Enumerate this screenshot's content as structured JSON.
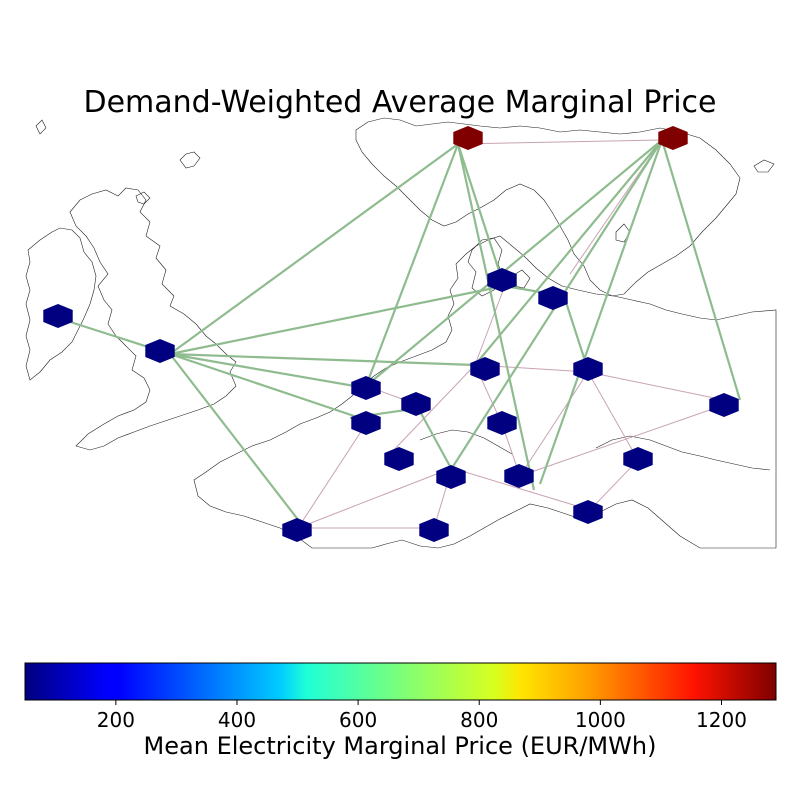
{
  "title": "Demand-Weighted Average Marginal Price",
  "colorbar": {
    "label": "Mean Electricity Marginal Price (EUR/MWh)",
    "min": 50,
    "max": 1290,
    "ticks": [
      200,
      400,
      600,
      800,
      1000,
      1200
    ],
    "tick_labels": [
      "200",
      "400",
      "600",
      "800",
      "1000",
      "1200"
    ],
    "colormap": "jet"
  },
  "colors": {
    "low_price_node": "#00008b",
    "high_price_node": "#800000",
    "dc_link": "#8fbc8f",
    "ac_line": "#c8a2b4",
    "coastline": "#222222"
  },
  "nodes": [
    {
      "id": "NO-S",
      "price": 1290
    },
    {
      "id": "SE-N",
      "price": 1290
    },
    {
      "id": "IE",
      "price": 50
    },
    {
      "id": "GB",
      "price": 50
    },
    {
      "id": "DK",
      "price": 50
    },
    {
      "id": "SE-S",
      "price": 50
    },
    {
      "id": "NL",
      "price": 50
    },
    {
      "id": "DE-N",
      "price": 50
    },
    {
      "id": "PL",
      "price": 50
    },
    {
      "id": "BE",
      "price": 50
    },
    {
      "id": "LU",
      "price": 50
    },
    {
      "id": "DE-C",
      "price": 50
    },
    {
      "id": "LT",
      "price": 50
    },
    {
      "id": "FR-N",
      "price": 50
    },
    {
      "id": "DE-S",
      "price": 50
    },
    {
      "id": "CZ",
      "price": 50
    },
    {
      "id": "SK",
      "price": 50
    },
    {
      "id": "AT",
      "price": 50
    },
    {
      "id": "FR-S",
      "price": 50
    },
    {
      "id": "CH",
      "price": 50
    }
  ]
}
